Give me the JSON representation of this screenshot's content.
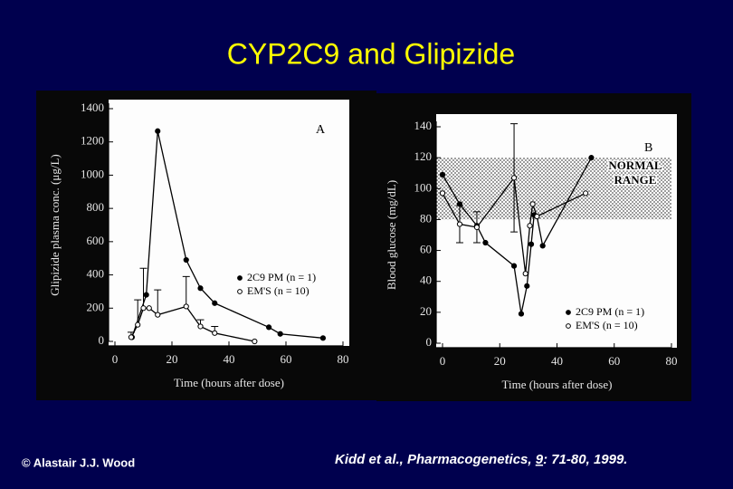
{
  "title": "CYP2C9 and Glipizide",
  "footer": {
    "credit": "© Alastair J.J. Wood",
    "citation_prefix": "Kidd et al., Pharmacogenetics, ",
    "citation_volume": "9",
    "citation_suffix": ": 71-80, 1999."
  },
  "chart_data": [
    {
      "type": "line",
      "panel_label": "A",
      "x_label": "Time (hours after dose)",
      "y_label": "Glipizide plasma conc. (μg/L)",
      "xlim": [
        0,
        80
      ],
      "xticks": [
        0,
        20,
        40,
        60,
        80
      ],
      "ylim": [
        0,
        1400
      ],
      "yticks": [
        0,
        200,
        400,
        600,
        800,
        1000,
        1200,
        1400
      ],
      "error_direction": "up",
      "series": [
        {
          "name": "2C9 PM (n = 1)",
          "marker": "filled",
          "color": "#000000",
          "x": [
            6,
            11,
            15,
            25,
            30,
            35,
            54,
            58,
            73
          ],
          "values": [
            25,
            280,
            1265,
            490,
            320,
            230,
            85,
            45,
            20
          ],
          "errors": [
            null,
            null,
            null,
            null,
            null,
            null,
            null,
            null,
            null
          ]
        },
        {
          "name": "EM'S (n = 10)",
          "marker": "open",
          "color": "#000000",
          "x": [
            5.7,
            8,
            10,
            12,
            15,
            25,
            30,
            35,
            49
          ],
          "values": [
            25,
            100,
            200,
            200,
            160,
            210,
            90,
            50,
            0
          ],
          "errors": [
            30,
            150,
            240,
            null,
            150,
            180,
            40,
            40,
            null
          ]
        }
      ]
    },
    {
      "type": "line",
      "panel_label": "B",
      "x_label": "Time (hours after dose)",
      "y_label": "Blood glucose (mg/dL)",
      "xlim": [
        0,
        80
      ],
      "xticks": [
        0,
        20,
        40,
        60,
        80
      ],
      "ylim": [
        0,
        140
      ],
      "yticks": [
        0,
        20,
        40,
        60,
        80,
        100,
        120,
        140
      ],
      "error_direction": "both",
      "normal_range": {
        "range": [
          80,
          120
        ],
        "label_lines": [
          "NORMAL",
          "RANGE"
        ]
      },
      "series": [
        {
          "name": "2C9 PM (n = 1)",
          "marker": "filled",
          "color": "#000000",
          "x": [
            0,
            6,
            12,
            15,
            25,
            27.5,
            29.5,
            31,
            32,
            33,
            35,
            52
          ],
          "values": [
            109,
            90,
            76,
            65,
            50,
            19,
            37,
            64,
            83,
            82,
            63,
            120
          ],
          "errors": [
            null,
            null,
            null,
            null,
            null,
            null,
            null,
            null,
            null,
            null,
            null,
            null
          ]
        },
        {
          "name": "EM'S (n = 10)",
          "marker": "open",
          "color": "#000000",
          "x": [
            0,
            6,
            12,
            25,
            29,
            30.5,
            31.5,
            33,
            50
          ],
          "values": [
            97,
            77,
            75,
            107,
            45,
            76,
            90,
            82,
            97
          ],
          "errors": [
            null,
            12,
            10,
            35,
            null,
            null,
            null,
            null,
            null
          ]
        }
      ]
    }
  ]
}
